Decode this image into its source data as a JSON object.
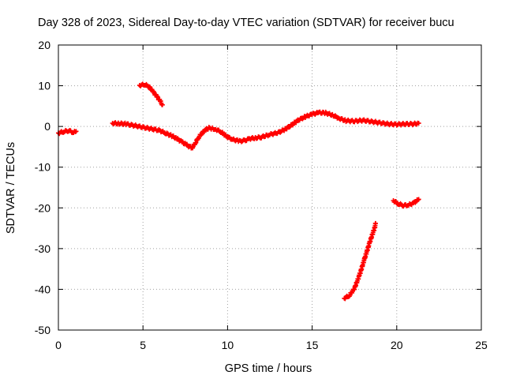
{
  "chart_data": {
    "type": "scatter",
    "title": "Day 328 of 2023, Sidereal Day-to-day VTEC variation (SDTVAR) for receiver bucu",
    "xlabel": "GPS time / hours",
    "ylabel": "SDTVAR / TECUs",
    "xlim": [
      0,
      25
    ],
    "ylim": [
      -50,
      20
    ],
    "xticks": [
      0,
      5,
      10,
      15,
      20,
      25
    ],
    "yticks": [
      -50,
      -40,
      -30,
      -20,
      -10,
      0,
      10,
      20
    ],
    "grid": true,
    "series_color": "#ff0000",
    "marker": "plus",
    "segments": [
      {
        "name": "segment-1",
        "points": [
          [
            0.0,
            -1.6
          ],
          [
            0.3,
            -1.3
          ],
          [
            0.6,
            -1.0
          ],
          [
            0.9,
            -1.5
          ],
          [
            1.05,
            -1.2
          ]
        ]
      },
      {
        "name": "segment-2",
        "points": [
          [
            3.2,
            0.8
          ],
          [
            3.6,
            0.7
          ],
          [
            4.0,
            0.6
          ],
          [
            4.5,
            0.2
          ],
          [
            5.0,
            -0.2
          ],
          [
            5.5,
            -0.6
          ],
          [
            6.0,
            -1.0
          ],
          [
            6.3,
            -1.6
          ],
          [
            6.7,
            -2.3
          ],
          [
            7.0,
            -3.0
          ],
          [
            7.3,
            -3.8
          ],
          [
            7.6,
            -4.6
          ],
          [
            7.9,
            -5.3
          ],
          [
            8.1,
            -4.0
          ],
          [
            8.3,
            -2.6
          ],
          [
            8.5,
            -1.6
          ],
          [
            8.7,
            -0.8
          ],
          [
            8.9,
            -0.4
          ],
          [
            9.1,
            -0.5
          ],
          [
            9.3,
            -0.7
          ],
          [
            9.6,
            -1.3
          ],
          [
            10.0,
            -2.6
          ],
          [
            10.3,
            -3.2
          ],
          [
            10.7,
            -3.6
          ],
          [
            11.0,
            -3.5
          ],
          [
            11.3,
            -3.0
          ],
          [
            11.7,
            -2.8
          ],
          [
            12.0,
            -2.6
          ],
          [
            12.5,
            -2.0
          ],
          [
            13.0,
            -1.5
          ],
          [
            13.4,
            -0.7
          ],
          [
            13.8,
            0.4
          ],
          [
            14.2,
            1.6
          ],
          [
            14.6,
            2.4
          ],
          [
            15.0,
            3.0
          ],
          [
            15.4,
            3.4
          ],
          [
            15.8,
            3.3
          ],
          [
            16.2,
            2.8
          ],
          [
            16.6,
            2.0
          ],
          [
            17.0,
            1.4
          ],
          [
            17.5,
            1.3
          ],
          [
            18.0,
            1.5
          ],
          [
            18.5,
            1.2
          ],
          [
            19.0,
            0.9
          ],
          [
            19.5,
            0.6
          ],
          [
            20.0,
            0.5
          ],
          [
            20.5,
            0.6
          ],
          [
            21.0,
            0.6
          ],
          [
            21.3,
            0.8
          ]
        ]
      },
      {
        "name": "segment-3",
        "points": [
          [
            4.8,
            10.1
          ],
          [
            5.1,
            10.3
          ],
          [
            5.35,
            9.8
          ],
          [
            5.6,
            8.5
          ],
          [
            5.85,
            7.2
          ],
          [
            6.05,
            6.0
          ],
          [
            6.15,
            5.3
          ]
        ]
      },
      {
        "name": "segment-4",
        "points": [
          [
            16.9,
            -42.2
          ],
          [
            17.2,
            -41.5
          ],
          [
            17.5,
            -39.8
          ],
          [
            17.8,
            -36.5
          ],
          [
            18.1,
            -32.5
          ],
          [
            18.4,
            -28.5
          ],
          [
            18.7,
            -24.8
          ],
          [
            18.75,
            -23.8
          ]
        ]
      },
      {
        "name": "segment-5",
        "points": [
          [
            19.8,
            -18.2
          ],
          [
            20.1,
            -19.0
          ],
          [
            20.4,
            -19.4
          ],
          [
            20.7,
            -19.3
          ],
          [
            21.0,
            -18.8
          ],
          [
            21.3,
            -17.9
          ]
        ]
      }
    ]
  }
}
